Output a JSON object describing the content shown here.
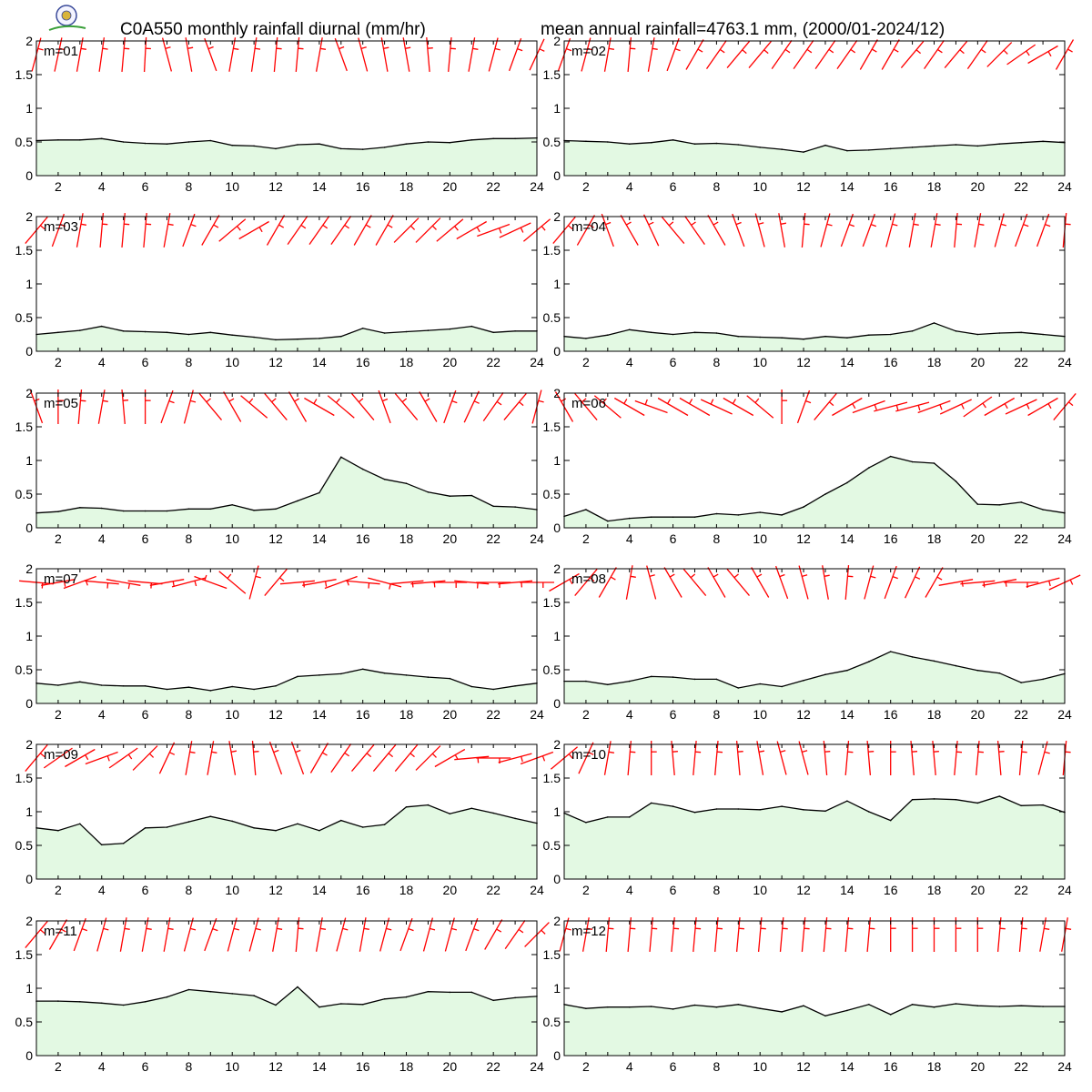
{
  "header": {
    "title_left": "C0A550 monthly rainfall diurnal (mm/hr)",
    "title_right": "mean annual rainfall=4763.1 mm, (2000/01-2024/12)"
  },
  "colors": {
    "fill": "#e3f9e3",
    "line": "#000000",
    "barb": "#ff0000",
    "axis": "#000000"
  },
  "logo": {
    "icon": "emblem-logo-icon"
  },
  "chart_data": {
    "type": "area",
    "x": [
      1,
      2,
      3,
      4,
      5,
      6,
      7,
      8,
      9,
      10,
      11,
      12,
      13,
      14,
      15,
      16,
      17,
      18,
      19,
      20,
      21,
      22,
      23,
      24
    ],
    "xlim": [
      1,
      24
    ],
    "ylim": [
      0,
      2
    ],
    "x_ticks": [
      "2",
      "4",
      "6",
      "8",
      "10",
      "12",
      "14",
      "16",
      "18",
      "20",
      "22",
      "24"
    ],
    "y_ticks": [
      "0",
      "0.5",
      "1",
      "1.5",
      "2"
    ],
    "grid": false,
    "panels": [
      {
        "label": "m=01",
        "values": [
          0.52,
          0.53,
          0.53,
          0.55,
          0.5,
          0.48,
          0.47,
          0.5,
          0.52,
          0.45,
          0.44,
          0.4,
          0.46,
          0.47,
          0.4,
          0.39,
          0.42,
          0.47,
          0.5,
          0.49,
          0.53,
          0.55,
          0.55,
          0.56
        ],
        "wind_dir_deg": [
          15,
          12,
          10,
          8,
          5,
          3,
          345,
          350,
          340,
          10,
          8,
          5,
          5,
          10,
          340,
          345,
          350,
          350,
          355,
          5,
          10,
          15,
          20,
          25
        ]
      },
      {
        "label": "m=02",
        "values": [
          0.52,
          0.51,
          0.5,
          0.47,
          0.49,
          0.53,
          0.47,
          0.48,
          0.46,
          0.42,
          0.39,
          0.35,
          0.45,
          0.37,
          0.38,
          0.4,
          0.42,
          0.44,
          0.46,
          0.44,
          0.47,
          0.49,
          0.51,
          0.49
        ],
        "wind_dir_deg": [
          20,
          15,
          10,
          5,
          10,
          20,
          30,
          35,
          40,
          40,
          35,
          35,
          35,
          35,
          30,
          30,
          40,
          35,
          40,
          35,
          45,
          55,
          60,
          30
        ]
      },
      {
        "label": "m=03",
        "values": [
          0.25,
          0.28,
          0.31,
          0.37,
          0.3,
          0.29,
          0.28,
          0.25,
          0.28,
          0.24,
          0.21,
          0.17,
          0.18,
          0.19,
          0.22,
          0.34,
          0.27,
          0.29,
          0.31,
          0.33,
          0.37,
          0.28,
          0.3,
          0.3
        ],
        "wind_dir_deg": [
          40,
          20,
          10,
          5,
          5,
          5,
          10,
          20,
          30,
          50,
          60,
          30,
          35,
          35,
          35,
          30,
          30,
          45,
          45,
          50,
          60,
          70,
          65,
          50
        ]
      },
      {
        "label": "m=04",
        "values": [
          0.22,
          0.19,
          0.24,
          0.32,
          0.28,
          0.25,
          0.28,
          0.27,
          0.22,
          0.21,
          0.2,
          0.18,
          0.22,
          0.2,
          0.24,
          0.25,
          0.3,
          0.42,
          0.3,
          0.25,
          0.27,
          0.28,
          0.25,
          0.22
        ],
        "wind_dir_deg": [
          40,
          30,
          340,
          330,
          335,
          320,
          325,
          330,
          340,
          345,
          350,
          5,
          15,
          20,
          20,
          15,
          10,
          10,
          5,
          10,
          15,
          20,
          20,
          5
        ]
      },
      {
        "label": "m=05",
        "values": [
          0.22,
          0.24,
          0.3,
          0.29,
          0.25,
          0.25,
          0.25,
          0.28,
          0.28,
          0.34,
          0.26,
          0.28,
          0.4,
          0.52,
          1.05,
          0.87,
          0.72,
          0.66,
          0.53,
          0.47,
          0.48,
          0.32,
          0.31,
          0.27
        ],
        "wind_dir_deg": [
          340,
          0,
          5,
          10,
          355,
          0,
          20,
          15,
          320,
          330,
          310,
          320,
          330,
          300,
          310,
          320,
          340,
          320,
          330,
          20,
          25,
          35,
          40,
          15
        ]
      },
      {
        "label": "m=06",
        "values": [
          0.17,
          0.27,
          0.1,
          0.14,
          0.16,
          0.16,
          0.16,
          0.21,
          0.19,
          0.23,
          0.19,
          0.31,
          0.5,
          0.67,
          0.89,
          1.06,
          0.98,
          0.96,
          0.69,
          0.35,
          0.34,
          0.38,
          0.27,
          0.22
        ],
        "wind_dir_deg": [
          330,
          320,
          310,
          300,
          290,
          300,
          300,
          295,
          300,
          310,
          0,
          20,
          40,
          60,
          70,
          75,
          75,
          70,
          65,
          55,
          60,
          65,
          60,
          40
        ]
      },
      {
        "label": "m=07",
        "values": [
          0.3,
          0.27,
          0.32,
          0.27,
          0.26,
          0.26,
          0.21,
          0.24,
          0.19,
          0.25,
          0.21,
          0.26,
          0.4,
          0.42,
          0.44,
          0.51,
          0.45,
          0.42,
          0.39,
          0.37,
          0.25,
          0.21,
          0.26,
          0.3
        ],
        "wind_dir_deg": [
          95,
          80,
          70,
          95,
          100,
          95,
          80,
          75,
          290,
          310,
          15,
          40,
          85,
          80,
          70,
          95,
          105,
          85,
          85,
          90,
          95,
          90,
          85,
          90
        ]
      },
      {
        "label": "m=08",
        "values": [
          0.33,
          0.33,
          0.28,
          0.33,
          0.4,
          0.39,
          0.36,
          0.36,
          0.23,
          0.29,
          0.25,
          0.34,
          0.43,
          0.49,
          0.62,
          0.77,
          0.69,
          0.63,
          0.56,
          0.49,
          0.45,
          0.31,
          0.36,
          0.44
        ],
        "wind_dir_deg": [
          60,
          40,
          30,
          10,
          345,
          330,
          320,
          330,
          320,
          330,
          340,
          345,
          350,
          5,
          15,
          20,
          25,
          30,
          80,
          85,
          80,
          90,
          75,
          65
        ]
      },
      {
        "label": "m=09",
        "values": [
          0.76,
          0.72,
          0.82,
          0.51,
          0.53,
          0.76,
          0.77,
          0.85,
          0.93,
          0.86,
          0.76,
          0.72,
          0.82,
          0.72,
          0.87,
          0.77,
          0.81,
          1.07,
          1.1,
          0.97,
          1.05,
          0.98,
          0.9,
          0.83
        ],
        "wind_dir_deg": [
          40,
          55,
          60,
          70,
          55,
          45,
          25,
          10,
          10,
          350,
          355,
          340,
          340,
          30,
          35,
          40,
          40,
          40,
          45,
          60,
          85,
          90,
          75,
          70
        ]
      },
      {
        "label": "m=10",
        "values": [
          0.98,
          0.84,
          0.92,
          0.92,
          1.13,
          1.08,
          0.99,
          1.04,
          1.04,
          1.03,
          1.08,
          1.03,
          1.01,
          1.16,
          1.0,
          0.87,
          1.18,
          1.19,
          1.18,
          1.13,
          1.23,
          1.09,
          1.1,
          0.99
        ],
        "wind_dir_deg": [
          50,
          25,
          10,
          5,
          0,
          355,
          5,
          5,
          355,
          350,
          345,
          345,
          355,
          5,
          355,
          0,
          355,
          355,
          5,
          5,
          355,
          5,
          15,
          5
        ]
      },
      {
        "label": "m=11",
        "values": [
          0.81,
          0.81,
          0.8,
          0.78,
          0.75,
          0.8,
          0.87,
          0.98,
          0.95,
          0.92,
          0.89,
          0.75,
          1.02,
          0.72,
          0.77,
          0.76,
          0.84,
          0.87,
          0.95,
          0.94,
          0.94,
          0.82,
          0.86,
          0.88
        ],
        "wind_dir_deg": [
          40,
          30,
          20,
          15,
          10,
          10,
          10,
          15,
          20,
          15,
          15,
          10,
          5,
          10,
          15,
          10,
          15,
          20,
          15,
          15,
          20,
          30,
          35,
          45
        ]
      },
      {
        "label": "m=12",
        "values": [
          0.76,
          0.7,
          0.72,
          0.72,
          0.73,
          0.69,
          0.75,
          0.72,
          0.76,
          0.7,
          0.65,
          0.74,
          0.59,
          0.67,
          0.76,
          0.61,
          0.76,
          0.72,
          0.77,
          0.74,
          0.73,
          0.74,
          0.73,
          0.73
        ],
        "wind_dir_deg": [
          15,
          10,
          5,
          5,
          5,
          5,
          5,
          5,
          5,
          5,
          5,
          5,
          5,
          5,
          5,
          0,
          0,
          0,
          0,
          0,
          5,
          5,
          10,
          10
        ]
      }
    ]
  }
}
